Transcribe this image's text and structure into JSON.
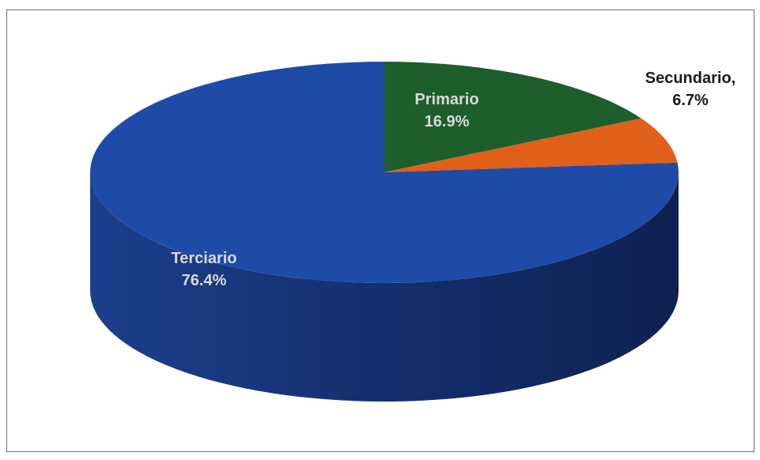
{
  "chart_data": {
    "type": "pie",
    "title": "",
    "legend": "none",
    "slices": [
      {
        "label": "Primario",
        "value": 16.9,
        "value_text": "16.9%",
        "color": "#1e5e2c"
      },
      {
        "label": "Secundario,",
        "value": 6.7,
        "value_text": "6.7%",
        "color": "#e0601a"
      },
      {
        "label": "Terciario",
        "value": 76.4,
        "value_text": "76.4%",
        "color": "#1f4ba8"
      }
    ]
  }
}
